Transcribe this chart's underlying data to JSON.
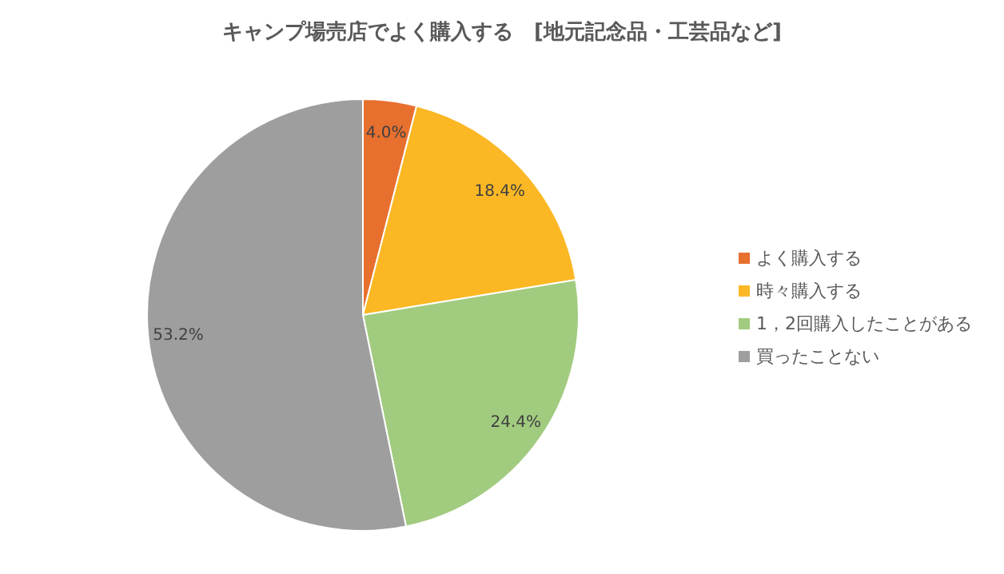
{
  "chart_data": {
    "type": "pie",
    "title": "キャンプ場売店でよく購入する　[地元記念品・工芸品など]",
    "categories": [
      "よく購入する",
      "時々購入する",
      "1，2回購入したことがある",
      "買ったことない"
    ],
    "values": [
      4.0,
      18.4,
      24.4,
      53.2
    ],
    "value_labels": [
      "4.0%",
      "18.4%",
      "24.4%",
      "53.2%"
    ],
    "colors": [
      "#e8702f",
      "#fbb824",
      "#a1cb7f",
      "#9e9e9e"
    ],
    "legend": "right"
  }
}
